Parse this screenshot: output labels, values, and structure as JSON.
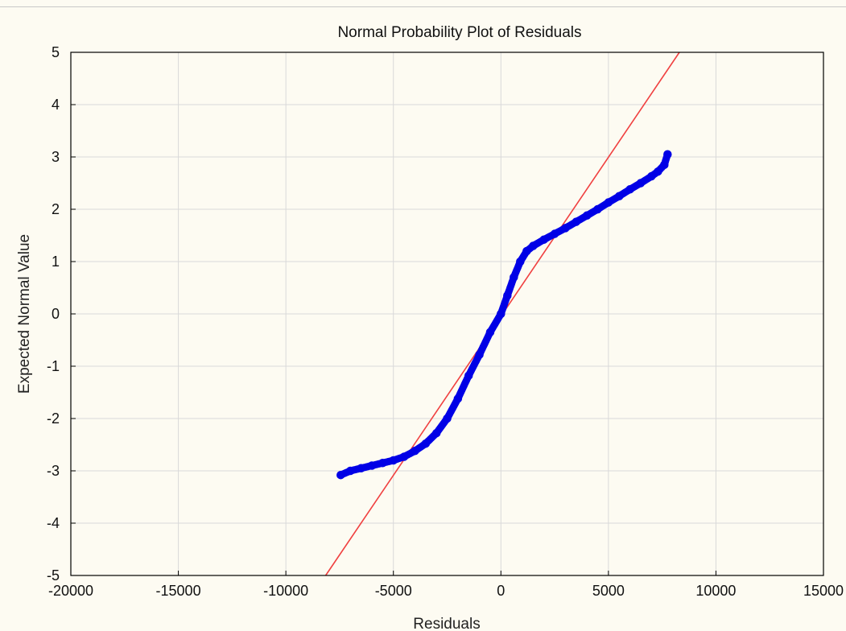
{
  "chart_data": {
    "type": "scatter",
    "title": "Normal Probability Plot of Residuals",
    "xlabel": "Residuals",
    "ylabel": "Expected Normal Value",
    "xlim": [
      -20000,
      15000
    ],
    "ylim": [
      -5,
      5
    ],
    "xticks": [
      "-20000",
      "-15000",
      "-10000",
      "-5000",
      "0",
      "5000",
      "10000",
      "15000"
    ],
    "yticks": [
      "5",
      "4",
      "3",
      "2",
      "1",
      "0",
      "-1",
      "-2",
      "-3",
      "-4",
      "-5"
    ],
    "grid": true,
    "legend": "none",
    "series": [
      {
        "marker": "circle-open",
        "color": "#0000e6",
        "points": [
          [
            -7450,
            -3.08
          ],
          [
            -7000,
            -3.0
          ],
          [
            -6500,
            -2.95
          ],
          [
            -6000,
            -2.9
          ],
          [
            -5500,
            -2.85
          ],
          [
            -5000,
            -2.8
          ],
          [
            -4500,
            -2.73
          ],
          [
            -4000,
            -2.62
          ],
          [
            -3500,
            -2.48
          ],
          [
            -3000,
            -2.28
          ],
          [
            -2500,
            -2.0
          ],
          [
            -2000,
            -1.62
          ],
          [
            -1500,
            -1.18
          ],
          [
            -1000,
            -0.78
          ],
          [
            -500,
            -0.35
          ],
          [
            0,
            0.0
          ],
          [
            300,
            0.35
          ],
          [
            600,
            0.7
          ],
          [
            900,
            1.0
          ],
          [
            1200,
            1.2
          ],
          [
            1500,
            1.3
          ],
          [
            2000,
            1.42
          ],
          [
            2500,
            1.53
          ],
          [
            3000,
            1.64
          ],
          [
            3500,
            1.76
          ],
          [
            4000,
            1.88
          ],
          [
            4500,
            2.0
          ],
          [
            5000,
            2.13
          ],
          [
            5500,
            2.25
          ],
          [
            6000,
            2.38
          ],
          [
            6500,
            2.5
          ],
          [
            7000,
            2.63
          ],
          [
            7300,
            2.72
          ],
          [
            7600,
            2.85
          ],
          [
            7750,
            3.05
          ]
        ]
      }
    ],
    "reference_line": {
      "color": "#f04040",
      "from": [
        -8150,
        -5.0
      ],
      "to": [
        8300,
        5.0
      ]
    }
  }
}
